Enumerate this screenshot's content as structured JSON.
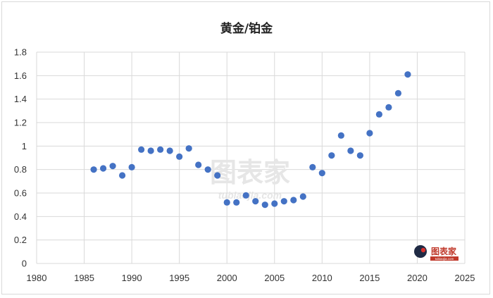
{
  "chart_data": {
    "type": "scatter",
    "title": "黄金/铂金",
    "xlabel": "",
    "ylabel": "",
    "xlim": [
      1980,
      2025
    ],
    "ylim": [
      0,
      1.8
    ],
    "x_ticks": [
      "1980",
      "1985",
      "1990",
      "1995",
      "2000",
      "2005",
      "2010",
      "2015",
      "2020",
      "2025"
    ],
    "y_ticks": [
      "0",
      "0.2",
      "0.4",
      "0.6",
      "0.8",
      "1",
      "1.2",
      "1.4",
      "1.6",
      "1.8"
    ],
    "grid": true,
    "legend": "none",
    "series": [
      {
        "color": "#4472c4",
        "x": [
          1986,
          1987,
          1988,
          1989,
          1990,
          1991,
          1992,
          1993,
          1994,
          1995,
          1996,
          1997,
          1998,
          1999,
          2000,
          2001,
          2002,
          2003,
          2004,
          2005,
          2006,
          2007,
          2008,
          2009,
          2010,
          2011,
          2012,
          2013,
          2014,
          2015,
          2016,
          2017,
          2018,
          2019
        ],
        "y": [
          0.8,
          0.81,
          0.83,
          0.75,
          0.82,
          0.97,
          0.96,
          0.97,
          0.96,
          0.91,
          0.98,
          0.84,
          0.8,
          0.75,
          0.52,
          0.52,
          0.58,
          0.53,
          0.5,
          0.51,
          0.53,
          0.54,
          0.57,
          0.82,
          0.77,
          0.92,
          1.09,
          0.96,
          0.92,
          1.11,
          1.27,
          1.33,
          1.45,
          1.61
        ]
      }
    ]
  },
  "watermark": {
    "center_text": "图表家",
    "center_subtext": "tubiaojia.com",
    "corner_text": "图表家",
    "corner_subtext": "tubiaojia.com"
  }
}
